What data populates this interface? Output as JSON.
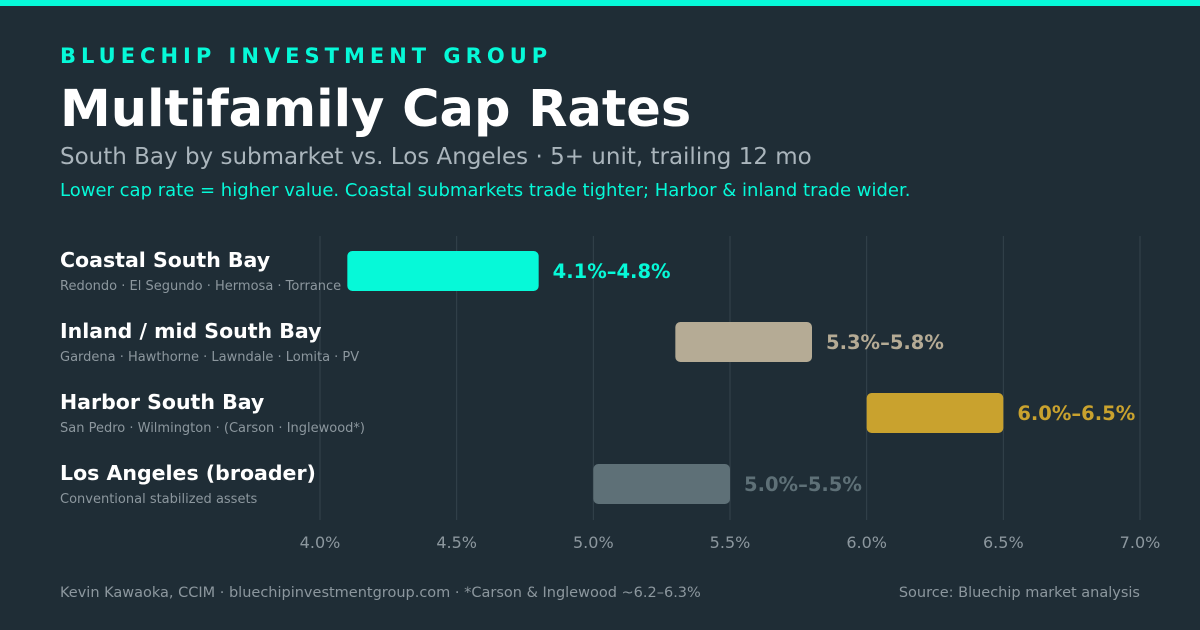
{
  "header": {
    "brand": "BLUECHIP INVESTMENT GROUP",
    "title": "Multifamily Cap Rates",
    "subtitle": "South Bay by submarket vs. Los Angeles · 5+ unit, trailing 12 mo",
    "note": "Lower cap rate = higher value. Coastal submarkets trade tighter; Harbor & inland trade wider."
  },
  "chart_data": {
    "type": "bar",
    "orientation": "horizontal-range",
    "xlim": [
      4.0,
      7.0
    ],
    "x_ticks": [
      4.0,
      4.5,
      5.0,
      5.5,
      6.0,
      6.5,
      7.0
    ],
    "x_tick_labels": [
      "4.0%",
      "4.5%",
      "5.0%",
      "5.5%",
      "6.0%",
      "6.5%",
      "7.0%"
    ],
    "grid": true,
    "rows": [
      {
        "label": "Coastal South Bay",
        "sublabel": "Redondo · El Segundo · Hermosa · Torrance",
        "low": 4.1,
        "high": 4.8,
        "value_label": "4.1%–4.8%",
        "color": "#06f9d8"
      },
      {
        "label": "Inland / mid South Bay",
        "sublabel": "Gardena · Hawthorne · Lawndale · Lomita · PV",
        "low": 5.3,
        "high": 5.8,
        "value_label": "5.3%–5.8%",
        "color": "#b5ab95"
      },
      {
        "label": "Harbor South Bay",
        "sublabel": "San Pedro · Wilmington · (Carson · Inglewood*)",
        "low": 6.0,
        "high": 6.5,
        "value_label": "6.0%–6.5%",
        "color": "#c9a22e"
      },
      {
        "label": "Los Angeles (broader)",
        "sublabel": "Conventional stabilized assets",
        "low": 5.0,
        "high": 5.5,
        "value_label": "5.0%–5.5%",
        "color": "#5e7077"
      }
    ]
  },
  "footer": {
    "left": "Kevin Kawaoka, CCIM · bluechipinvestmentgroup.com · *Carson & Inglewood ~6.2–6.3%",
    "right": "Source: Bluechip market analysis"
  },
  "colors": {
    "background": "#1f2d36",
    "accent": "#06f9d8",
    "grid": "#34434c",
    "muted_text": "#8c979e"
  }
}
